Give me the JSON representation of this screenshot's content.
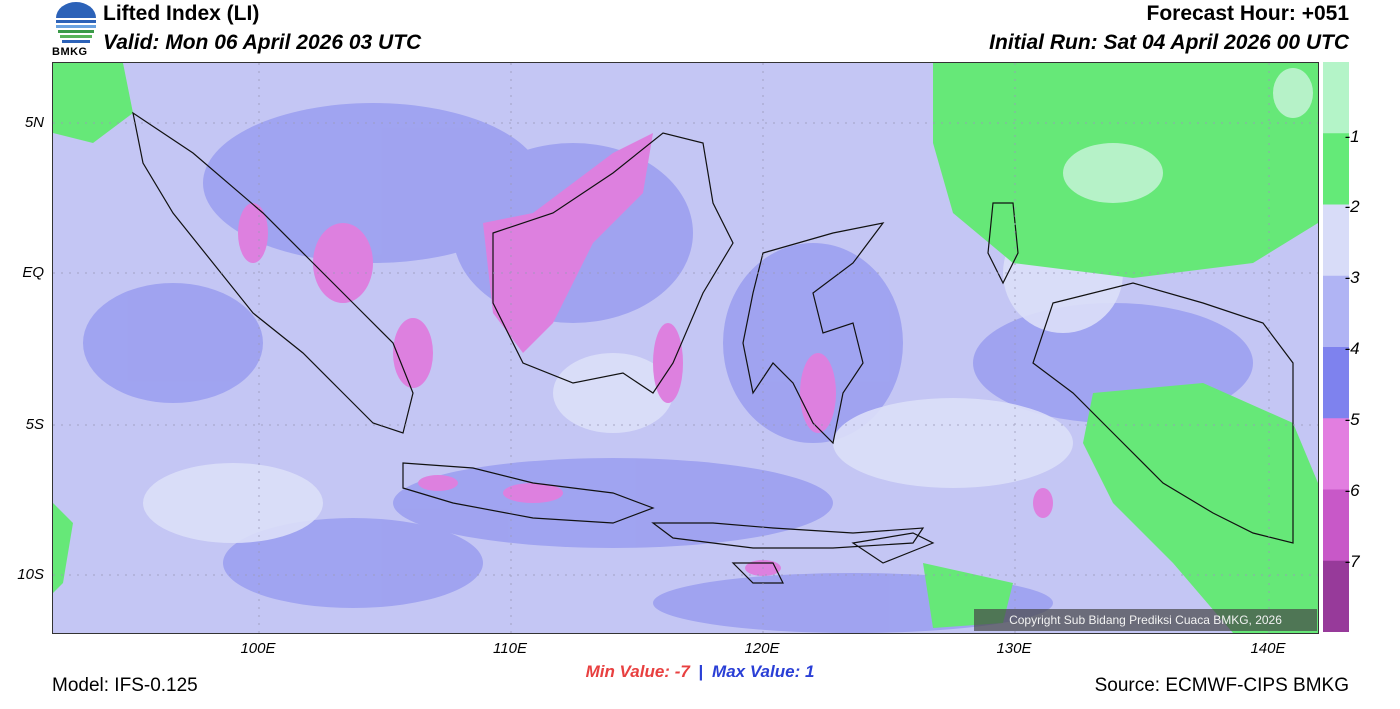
{
  "header": {
    "title": "Lifted Index (LI)",
    "valid": "Valid: Mon 06 April 2026 03 UTC",
    "forecast_hour": "Forecast Hour: +051",
    "initial_run": "Initial Run: Sat 04 April 2026 00 UTC",
    "logo_text": "BMKG"
  },
  "map": {
    "lat_labels": [
      "5N",
      "EQ",
      "5S",
      "10S"
    ],
    "lon_labels": [
      "100E",
      "110E",
      "120E",
      "130E",
      "140E"
    ],
    "copyright": "Copyright Sub Bidang Prediksi Cuaca BMKG, 2026",
    "background_color": "#c2c2f4"
  },
  "stats": {
    "min_label": "Min Value:",
    "min_value": "-7",
    "separator": "|",
    "max_label": "Max Value:",
    "max_value": "1"
  },
  "footer": {
    "model": "Model: IFS-0.125",
    "source": "Source: ECMWF-CIPS BMKG"
  },
  "colorbar": {
    "labels": [
      "-1",
      "-2",
      "-3",
      "-4",
      "-5",
      "-6",
      "-7"
    ],
    "colors": [
      "#b4f4c8",
      "#64ea78",
      "#d8dcf8",
      "#b0b4f4",
      "#7e82ee",
      "#e27ee0",
      "#c858c8",
      "#973a9a"
    ]
  }
}
